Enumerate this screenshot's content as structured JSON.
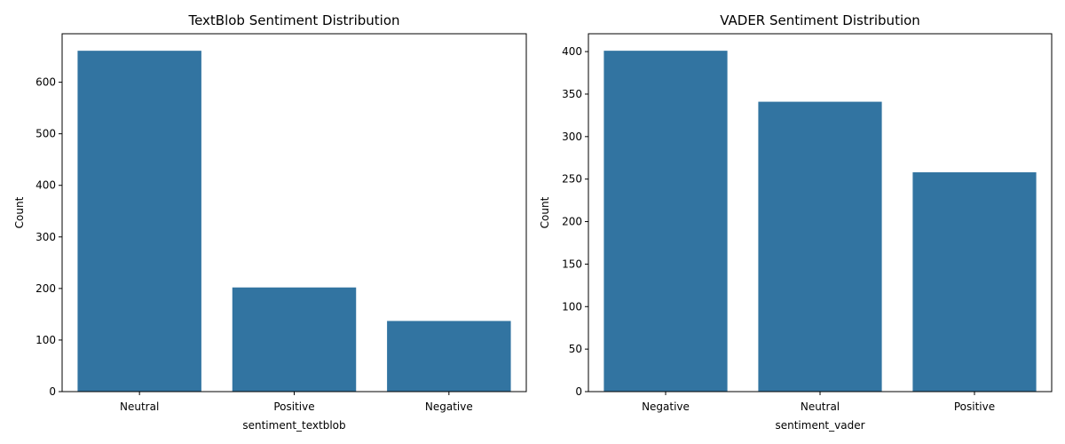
{
  "chart_data": [
    {
      "type": "bar",
      "title": "TextBlob Sentiment Distribution",
      "xlabel": "sentiment_textblob",
      "ylabel": "Count",
      "categories": [
        "Neutral",
        "Positive",
        "Negative"
      ],
      "values": [
        661,
        202,
        137
      ],
      "ylim": [
        0,
        694
      ],
      "yticks": [
        0,
        100,
        200,
        300,
        400,
        500,
        600
      ],
      "bar_color": "#3274a1",
      "grid": false,
      "legend": "none"
    },
    {
      "type": "bar",
      "title": "VADER Sentiment Distribution",
      "xlabel": "sentiment_vader",
      "ylabel": "Count",
      "categories": [
        "Negative",
        "Neutral",
        "Positive"
      ],
      "values": [
        401,
        341,
        258
      ],
      "ylim": [
        0,
        421
      ],
      "yticks": [
        0,
        50,
        100,
        150,
        200,
        250,
        300,
        350,
        400
      ],
      "bar_color": "#3274a1",
      "grid": false,
      "legend": "none"
    }
  ]
}
